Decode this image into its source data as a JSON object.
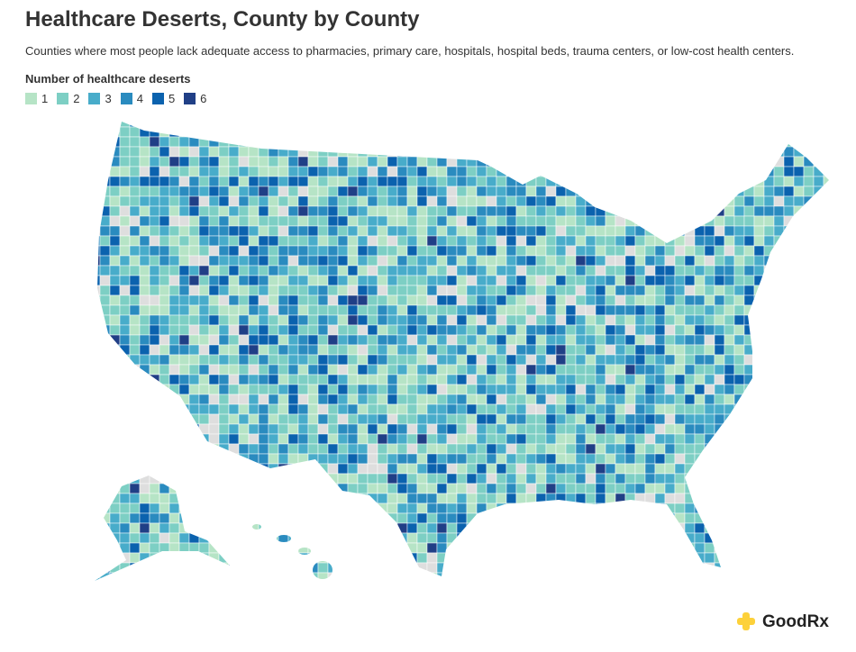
{
  "header": {
    "title": "Healthcare Deserts, County by County",
    "subtitle": "Counties where most people lack adequate access to pharmacies, primary care, hospitals, hospital beds, trauma centers, or low-cost health centers."
  },
  "legend": {
    "title": "Number of healthcare deserts",
    "items": [
      {
        "label": "1",
        "color": "#b6e4c6"
      },
      {
        "label": "2",
        "color": "#7dcfc4"
      },
      {
        "label": "3",
        "color": "#48acca"
      },
      {
        "label": "4",
        "color": "#2a8bbf"
      },
      {
        "label": "5",
        "color": "#0b62ae"
      },
      {
        "label": "6",
        "color": "#203f86"
      }
    ],
    "no_data_color": "#dedede"
  },
  "footer": {
    "logo": "GoodRx"
  }
}
